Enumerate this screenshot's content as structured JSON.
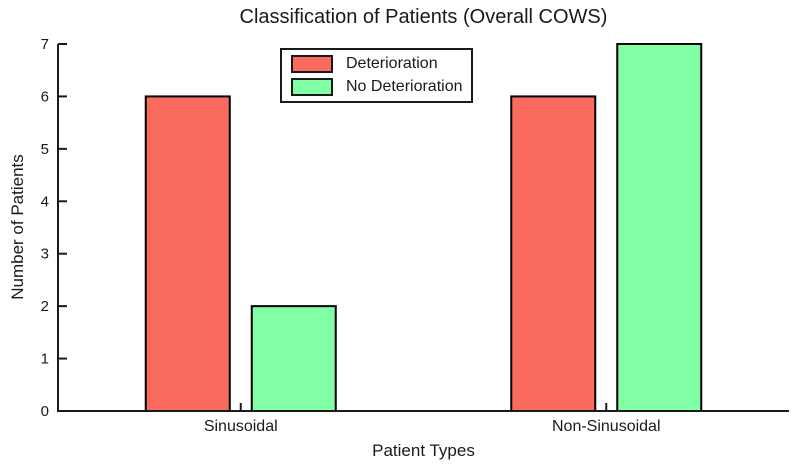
{
  "chart_data": {
    "type": "bar",
    "title": "Classification of Patients (Overall COWS)",
    "xlabel": "Patient Types",
    "ylabel": "Number of Patients",
    "categories": [
      "Sinusoidal",
      "Non-Sinusoidal"
    ],
    "series": [
      {
        "name": "Deterioration",
        "color": "#FB6A5F",
        "values": [
          6,
          6
        ]
      },
      {
        "name": "No Deterioration",
        "color": "#80FFA4",
        "values": [
          2,
          7
        ]
      }
    ],
    "ylim": [
      0,
      7
    ],
    "yticks": [
      0,
      1,
      2,
      3,
      4,
      5,
      6,
      7
    ],
    "grid": false,
    "legend_position": "top-center",
    "bar_edge_color": "#000000",
    "axis_color": "#1a1a1a"
  }
}
